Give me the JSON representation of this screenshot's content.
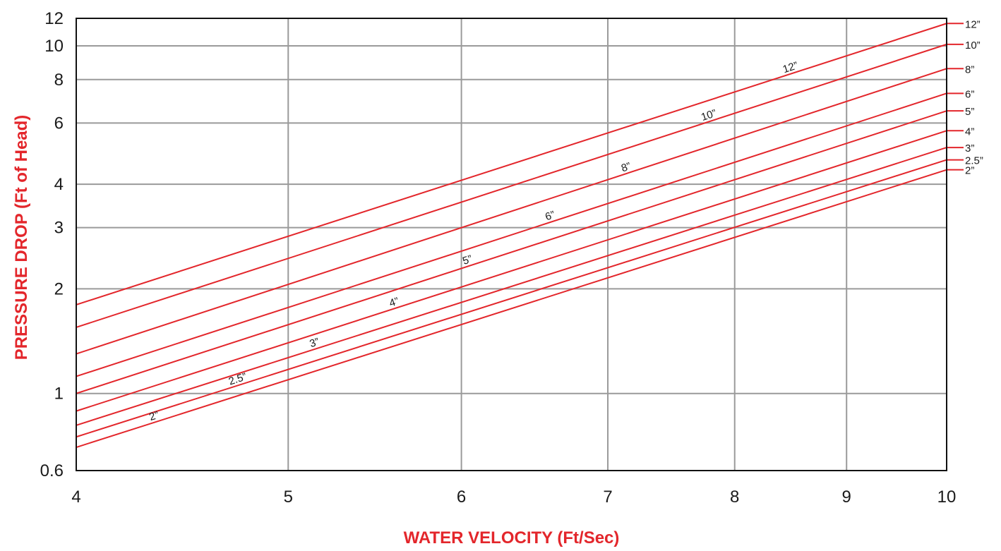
{
  "chart_data": {
    "type": "line",
    "title": "",
    "xlabel": "WATER VELOCITY (Ft/Sec)",
    "ylabel": "PRESSURE DROP (Ft of Head)",
    "x_scale": "log",
    "y_scale": "log",
    "xlim": [
      4,
      10
    ],
    "ylim": [
      0.6,
      12
    ],
    "x_ticks": [
      "4",
      "5",
      "6",
      "7",
      "8",
      "9",
      "10"
    ],
    "y_ticks": [
      "0.6",
      "1",
      "2",
      "3",
      "4",
      "6",
      "8",
      "10",
      "12"
    ],
    "grid": true,
    "colors": {
      "series": "#e3262b",
      "axis_label": "#e3262b",
      "grid": "#9a9a9a",
      "frame": "#111111"
    },
    "series": [
      {
        "name": "2”",
        "right_label": "2”",
        "inline_label": "2”",
        "x": [
          4,
          10
        ],
        "y": [
          0.7,
          4.4
        ]
      },
      {
        "name": "2.5”",
        "right_label": "2.5”",
        "inline_label": "2.5”",
        "x": [
          4,
          10
        ],
        "y": [
          0.75,
          4.7
        ]
      },
      {
        "name": "3”",
        "right_label": "3”",
        "inline_label": "3”",
        "x": [
          4,
          10
        ],
        "y": [
          0.81,
          5.1
        ]
      },
      {
        "name": "4”",
        "right_label": "4”",
        "inline_label": "4”",
        "x": [
          4,
          10
        ],
        "y": [
          0.89,
          5.7
        ]
      },
      {
        "name": "5”",
        "right_label": "5”",
        "inline_label": "5”",
        "x": [
          4,
          10
        ],
        "y": [
          1.0,
          6.5
        ]
      },
      {
        "name": "6”",
        "right_label": "6”",
        "inline_label": "6”",
        "x": [
          4,
          10
        ],
        "y": [
          1.12,
          7.3
        ]
      },
      {
        "name": "8”",
        "right_label": "8”",
        "inline_label": "8”",
        "x": [
          4,
          10
        ],
        "y": [
          1.3,
          8.6
        ]
      },
      {
        "name": "10”",
        "right_label": "10”",
        "inline_label": "10”",
        "x": [
          4,
          10
        ],
        "y": [
          1.55,
          10.1
        ]
      },
      {
        "name": "12”",
        "right_label": "12”",
        "inline_label": "12”",
        "x": [
          4,
          10
        ],
        "y": [
          1.8,
          11.6
        ]
      }
    ],
    "inline_label_x": [
      4.35,
      4.75,
      5.15,
      5.6,
      6.05,
      6.6,
      7.15,
      7.8,
      8.5
    ]
  }
}
